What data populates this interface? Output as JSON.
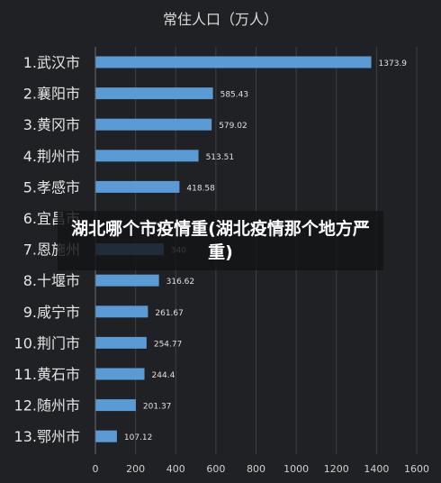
{
  "chart_data": {
    "type": "bar",
    "orientation": "horizontal",
    "title": "常住人口（万人）",
    "categories": [
      "1.武汉市",
      "2.襄阳市",
      "3.黄冈市",
      "4.荆州市",
      "5.孝感市",
      "6.宜昌市",
      "7.恩施州",
      "8.十堰市",
      "9.咸宁市",
      "10.荆门市",
      "11.黄石市",
      "12.随州市",
      "13.鄂州市"
    ],
    "values": [
      1373.9,
      585.43,
      579.02,
      513.51,
      418.58,
      null,
      340,
      316.62,
      261.67,
      254.77,
      244.4,
      201.37,
      107.12
    ],
    "value_labels": [
      "1373.9",
      "585.43",
      "579.02",
      "513.51",
      "418.58",
      "",
      "340",
      "316.62",
      "261.67",
      "254.77",
      "244.4",
      "201.37",
      "107.12"
    ],
    "xlim": [
      0,
      1600
    ],
    "xticks": [
      "0",
      "200",
      "400",
      "600",
      "800",
      "1000",
      "1200",
      "1400",
      "1600"
    ],
    "grid": true,
    "bar_color": "#5b9bd5"
  },
  "overlay": {
    "text": "湖北哪个市疫情重(湖北疫情那个地方严重)"
  }
}
